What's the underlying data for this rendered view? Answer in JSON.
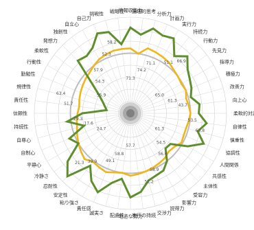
{
  "chart_data": {
    "type": "radar",
    "range": [
      0,
      80
    ],
    "grid": true,
    "legend": "none",
    "categories": [
      "情報収集力",
      "論理的思考",
      "分析力",
      "計画力",
      "実行力",
      "持続力",
      "行動力",
      "先見力",
      "指導力",
      "積極力",
      "改善力",
      "向上心",
      "柔軟的対応",
      "自律性",
      "慎重性",
      "協調性",
      "人間関係",
      "共感性",
      "主体性",
      "受容力",
      "影響力",
      "説得力",
      "交渉力",
      "実行の持続",
      "地道な努力",
      "配慮性",
      "誠実さ",
      "責任感",
      "粘り強さ",
      "安定性",
      "忍耐性",
      "冷静さ",
      "平静心",
      "自制心",
      "自尊心",
      "持続性",
      "信頼性",
      "責任性",
      "規律性",
      "勤勉性",
      "行動性",
      "柔軟性",
      "発想力",
      "独創性",
      "自立心",
      "自己力",
      "挑戦性",
      "戦略性"
    ],
    "series": [
      {
        "color": "#5e8f2c",
        "values": [
          71.3,
          66,
          73,
          70,
          72,
          60,
          67,
          60,
          57,
          55,
          52,
          58,
          56.9,
          64,
          58,
          66,
          55,
          42,
          41.3,
          50,
          55,
          56,
          58,
          66,
          70,
          55,
          60,
          71.1,
          65,
          55,
          74.2,
          66,
          50,
          55,
          40,
          53,
          40,
          20,
          22,
          25,
          30,
          40,
          62,
          60,
          63,
          72,
          70,
          58
        ]
      },
      {
        "color": "#f0b619",
        "values": [
          54,
          50,
          56,
          55,
          54,
          53,
          51,
          50,
          49,
          50,
          48,
          49,
          50,
          49,
          48,
          48,
          49,
          46,
          45,
          47,
          48,
          49,
          50,
          51,
          52,
          50,
          51,
          53,
          52,
          51,
          54,
          52,
          50,
          48,
          46,
          45,
          44,
          43,
          44,
          45,
          46,
          47,
          48,
          50,
          52,
          53,
          54,
          54
        ]
      }
    ],
    "data_labels": [
      "71.3",
      "74.2",
      "71.1",
      "51.1",
      "66.9",
      "65.0",
      "61.3",
      "43.7",
      "53.5",
      "63.8",
      "61.3",
      "54.5",
      "56.6",
      "58.9",
      "52.2",
      "57.7",
      "58.8",
      "49.1",
      "39.9",
      "21.3",
      "24.7",
      "17.6",
      "29.3",
      "51.7",
      "63.4",
      "55.9",
      "54.3",
      "57.9",
      "52.3",
      "58.2"
    ],
    "reference_ring_value": 50
  }
}
